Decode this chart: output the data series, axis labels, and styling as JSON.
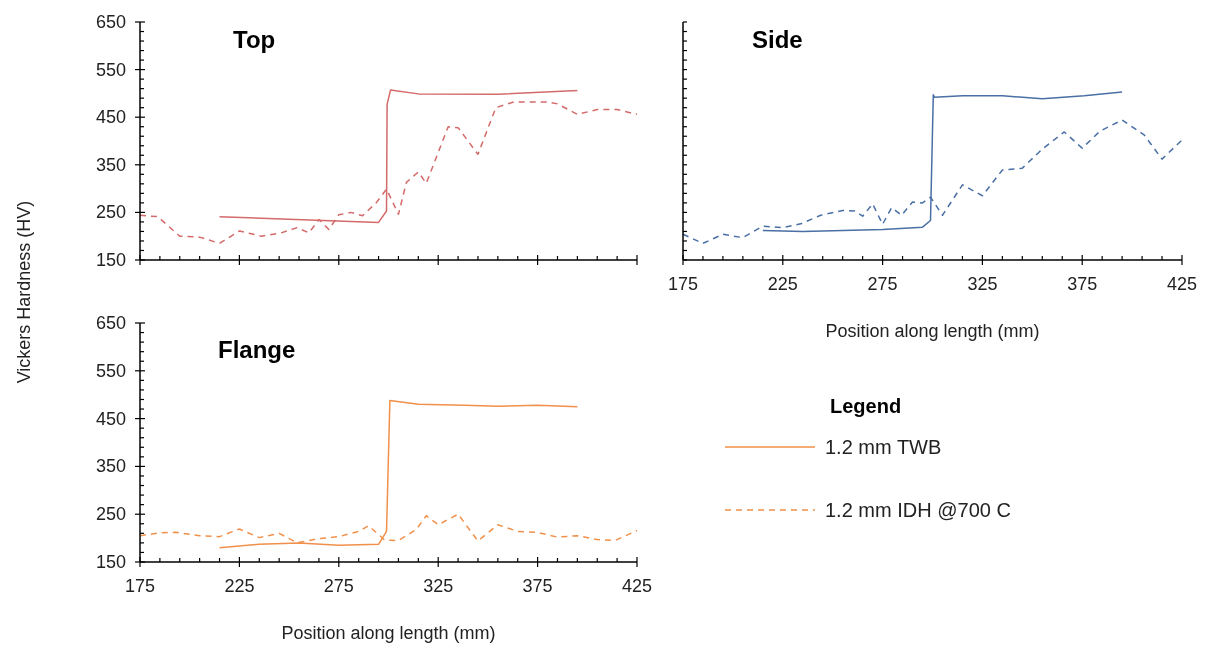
{
  "chart_data": [
    {
      "type": "line",
      "title": "Top",
      "ylabel": "Vickers Hardness (HV)",
      "xlim": [
        175,
        425
      ],
      "ylim": [
        150,
        650
      ],
      "tick_labels": "y",
      "xticks": [
        175,
        {
          "value": 185,
          "label": null
        },
        {
          "value": 195,
          "label": null
        },
        {
          "value": 205,
          "label": null
        },
        {
          "value": 215,
          "label": null
        },
        225,
        {
          "value": 235,
          "label": null
        },
        {
          "value": 245,
          "label": null
        },
        {
          "value": 255,
          "label": null
        },
        {
          "value": 265,
          "label": null
        },
        275,
        {
          "value": 285,
          "label": null
        },
        {
          "value": 295,
          "label": null
        },
        {
          "value": 305,
          "label": null
        },
        {
          "value": 315,
          "label": null
        },
        325,
        {
          "value": 335,
          "label": null
        },
        {
          "value": 345,
          "label": null
        },
        {
          "value": 355,
          "label": null
        },
        {
          "value": 365,
          "label": null
        },
        375,
        {
          "value": 385,
          "label": null
        },
        {
          "value": 395,
          "label": null
        },
        {
          "value": 405,
          "label": null
        },
        {
          "value": 415,
          "label": null
        },
        425
      ],
      "yticks": [
        150,
        {
          "value": 170,
          "label": null
        },
        {
          "value": 190,
          "label": null
        },
        {
          "value": 210,
          "label": null
        },
        {
          "value": 230,
          "label": null
        },
        250,
        {
          "value": 270,
          "label": null
        },
        {
          "value": 290,
          "label": null
        },
        {
          "value": 310,
          "label": null
        },
        {
          "value": 330,
          "label": null
        },
        350,
        {
          "value": 370,
          "label": null
        },
        {
          "value": 390,
          "label": null
        },
        {
          "value": 410,
          "label": null
        },
        {
          "value": 430,
          "label": null
        },
        450,
        {
          "value": 470,
          "label": null
        },
        {
          "value": 490,
          "label": null
        },
        {
          "value": 510,
          "label": null
        },
        {
          "value": 530,
          "label": null
        },
        550,
        {
          "value": 570,
          "label": null
        },
        {
          "value": 590,
          "label": null
        },
        {
          "value": 610,
          "label": null
        },
        {
          "value": 630,
          "label": null
        },
        650
      ],
      "series": [
        {
          "color": "#d46a6a",
          "line_style": "solid",
          "x": [
            215,
            295,
            299,
            299.3,
            301,
            315,
            355,
            395
          ],
          "values": [
            241,
            229,
            253,
            477,
            507,
            499,
            498,
            506
          ]
        },
        {
          "color": "#d46a6a",
          "line_style": "dashed",
          "x": [
            175,
            184,
            195,
            205,
            215,
            225,
            236,
            246,
            254,
            260,
            265,
            270,
            275,
            281,
            287,
            294,
            299,
            305,
            309,
            315,
            319,
            330,
            335,
            345,
            354,
            363,
            380,
            385,
            395,
            405,
            415,
            425
          ],
          "values": [
            244,
            241,
            200,
            198,
            185,
            211,
            200,
            207,
            218,
            207,
            235,
            214,
            245,
            250,
            243,
            271,
            299,
            246,
            313,
            335,
            311,
            430,
            428,
            372,
            470,
            482,
            482,
            478,
            456,
            466,
            466,
            456
          ]
        }
      ]
    },
    {
      "type": "line",
      "title": "Side",
      "xlabel": "Position along length (mm)",
      "xlim": [
        175,
        425
      ],
      "ylim": [
        150,
        650
      ],
      "xticks": [
        175,
        {
          "value": 185,
          "label": null
        },
        {
          "value": 195,
          "label": null
        },
        {
          "value": 205,
          "label": null
        },
        {
          "value": 215,
          "label": null
        },
        225,
        {
          "value": 235,
          "label": null
        },
        {
          "value": 245,
          "label": null
        },
        {
          "value": 255,
          "label": null
        },
        {
          "value": 265,
          "label": null
        },
        275,
        {
          "value": 285,
          "label": null
        },
        {
          "value": 295,
          "label": null
        },
        {
          "value": 305,
          "label": null
        },
        {
          "value": 315,
          "label": null
        },
        325,
        {
          "value": 335,
          "label": null
        },
        {
          "value": 345,
          "label": null
        },
        {
          "value": 355,
          "label": null
        },
        {
          "value": 365,
          "label": null
        },
        375,
        {
          "value": 385,
          "label": null
        },
        {
          "value": 395,
          "label": null
        },
        {
          "value": 405,
          "label": null
        },
        {
          "value": 415,
          "label": null
        },
        425
      ],
      "yticks": [
        {
          "value": 150,
          "label": null
        },
        {
          "value": 170,
          "label": null
        },
        {
          "value": 190,
          "label": null
        },
        {
          "value": 210,
          "label": null
        },
        {
          "value": 230,
          "label": null
        },
        {
          "value": 250,
          "label": null
        },
        {
          "value": 270,
          "label": null
        },
        {
          "value": 290,
          "label": null
        },
        {
          "value": 310,
          "label": null
        },
        {
          "value": 330,
          "label": null
        },
        {
          "value": 350,
          "label": null
        },
        {
          "value": 370,
          "label": null
        },
        {
          "value": 390,
          "label": null
        },
        {
          "value": 410,
          "label": null
        },
        {
          "value": 430,
          "label": null
        },
        {
          "value": 450,
          "label": null
        },
        {
          "value": 470,
          "label": null
        },
        {
          "value": 490,
          "label": null
        },
        {
          "value": 510,
          "label": null
        },
        {
          "value": 530,
          "label": null
        },
        {
          "value": 550,
          "label": null
        },
        {
          "value": 570,
          "label": null
        },
        {
          "value": 590,
          "label": null
        },
        {
          "value": 610,
          "label": null
        },
        {
          "value": 630,
          "label": null
        },
        {
          "value": 650,
          "label": null
        }
      ],
      "tick_labels": "x",
      "series": [
        {
          "color": "#4a6fa5",
          "line_style": "solid",
          "x": [
            215,
            235,
            275,
            295,
            299,
            300.4,
            301,
            315,
            335,
            355,
            376,
            395
          ],
          "values": [
            212,
            210,
            214,
            219,
            233,
            497,
            492,
            495,
            495,
            489,
            495,
            503
          ]
        },
        {
          "color": "#4a6fa5",
          "line_style": "dashed",
          "x": [
            175,
            185,
            195,
            205,
            215,
            225,
            234,
            244,
            255,
            261,
            265,
            270,
            275,
            279.5,
            284.5,
            290,
            295,
            299,
            305,
            315,
            325,
            335,
            345,
            355,
            366,
            375,
            384,
            395,
            406,
            415,
            425
          ],
          "values": [
            204,
            185,
            204,
            197,
            221,
            218,
            226,
            244,
            254,
            253,
            242,
            268,
            225,
            260,
            244,
            272,
            270,
            282,
            244,
            308,
            285,
            339,
            343,
            383,
            419,
            385,
            421,
            444,
            413,
            362,
            402
          ]
        }
      ]
    },
    {
      "type": "line",
      "title": "Flange",
      "xlabel": "Position along length (mm)",
      "legend": "right",
      "legend_title": "Legend",
      "xlim": [
        175,
        425
      ],
      "ylim": [
        150,
        650
      ],
      "xticks": [
        175,
        {
          "value": 185,
          "label": null
        },
        {
          "value": 195,
          "label": null
        },
        {
          "value": 205,
          "label": null
        },
        {
          "value": 215,
          "label": null
        },
        225,
        {
          "value": 235,
          "label": null
        },
        {
          "value": 245,
          "label": null
        },
        {
          "value": 255,
          "label": null
        },
        {
          "value": 265,
          "label": null
        },
        275,
        {
          "value": 285,
          "label": null
        },
        {
          "value": 295,
          "label": null
        },
        {
          "value": 305,
          "label": null
        },
        {
          "value": 315,
          "label": null
        },
        325,
        {
          "value": 335,
          "label": null
        },
        {
          "value": 345,
          "label": null
        },
        {
          "value": 355,
          "label": null
        },
        {
          "value": 365,
          "label": null
        },
        375,
        {
          "value": 385,
          "label": null
        },
        {
          "value": 395,
          "label": null
        },
        {
          "value": 405,
          "label": null
        },
        {
          "value": 415,
          "label": null
        },
        425
      ],
      "yticks": [
        150,
        {
          "value": 170,
          "label": null
        },
        {
          "value": 190,
          "label": null
        },
        {
          "value": 210,
          "label": null
        },
        {
          "value": 230,
          "label": null
        },
        250,
        {
          "value": 270,
          "label": null
        },
        {
          "value": 290,
          "label": null
        },
        {
          "value": 310,
          "label": null
        },
        {
          "value": 330,
          "label": null
        },
        350,
        {
          "value": 370,
          "label": null
        },
        {
          "value": 390,
          "label": null
        },
        {
          "value": 410,
          "label": null
        },
        {
          "value": 430,
          "label": null
        },
        450,
        {
          "value": 470,
          "label": null
        },
        {
          "value": 490,
          "label": null
        },
        {
          "value": 510,
          "label": null
        },
        {
          "value": 530,
          "label": null
        },
        550,
        {
          "value": 570,
          "label": null
        },
        {
          "value": 590,
          "label": null
        },
        {
          "value": 610,
          "label": null
        },
        {
          "value": 630,
          "label": null
        },
        650
      ],
      "series": [
        {
          "name": "1.2 mm TWB",
          "color": "#f0904a",
          "line_style": "solid",
          "x": [
            215,
            235,
            255,
            275,
            295,
            299,
            300.7,
            315,
            338,
            355,
            375,
            395
          ],
          "values": [
            180,
            187,
            190,
            185,
            187,
            214,
            488,
            480,
            478,
            476,
            478,
            475
          ]
        },
        {
          "name": "1.2 mm IDH @700 C",
          "color": "#f0904a",
          "line_style": "dashed",
          "x": [
            175,
            185,
            193,
            205,
            215,
            225,
            235,
            245,
            254,
            265,
            275,
            285,
            290,
            298,
            305,
            314,
            319,
            325,
            335,
            345,
            355,
            365,
            375,
            385,
            395,
            405,
            414,
            425
          ],
          "values": [
            205,
            211,
            212,
            205,
            203,
            219,
            201,
            210,
            190,
            199,
            203,
            214,
            226,
            196,
            195,
            218,
            247,
            228,
            250,
            194,
            228,
            214,
            212,
            202,
            205,
            197,
            195,
            216
          ]
        }
      ]
    }
  ]
}
